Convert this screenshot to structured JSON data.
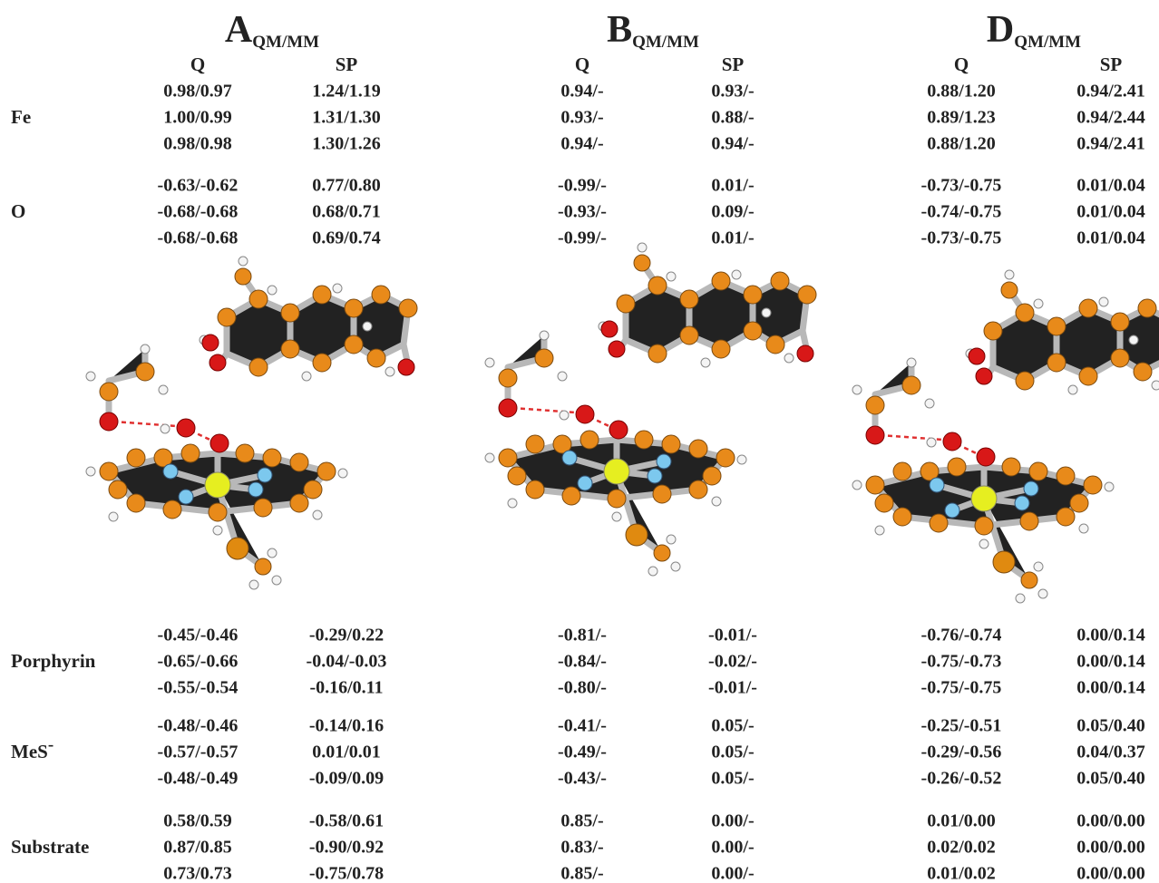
{
  "panels": [
    {
      "letter": "A",
      "subscript": "QM/MM",
      "columns": [
        "Q",
        "SP"
      ]
    },
    {
      "letter": "B",
      "subscript": "QM/MM",
      "columns": [
        "Q",
        "SP"
      ]
    },
    {
      "letter": "D",
      "subscript": "QM/MM",
      "columns": [
        "Q",
        "SP"
      ]
    }
  ],
  "groups": [
    {
      "label": "Fe",
      "rows": [
        [
          "0.98/0.97",
          "1.24/1.19",
          "0.94/-",
          "0.93/-",
          "0.88/1.20",
          "0.94/2.41"
        ],
        [
          "1.00/0.99",
          "1.31/1.30",
          "0.93/-",
          "0.88/-",
          "0.89/1.23",
          "0.94/2.44"
        ],
        [
          "0.98/0.98",
          "1.30/1.26",
          "0.94/-",
          "0.94/-",
          "0.88/1.20",
          "0.94/2.41"
        ]
      ]
    },
    {
      "label": "O",
      "rows": [
        [
          "-0.63/-0.62",
          "0.77/0.80",
          "-0.99/-",
          "0.01/-",
          "-0.73/-0.75",
          "0.01/0.04"
        ],
        [
          "-0.68/-0.68",
          "0.68/0.71",
          "-0.93/-",
          "0.09/-",
          "-0.74/-0.75",
          "0.01/0.04"
        ],
        [
          "-0.68/-0.68",
          "0.69/0.74",
          "-0.99/-",
          "0.01/-",
          "-0.73/-0.75",
          "0.01/0.04"
        ]
      ]
    },
    {
      "label": "Porphyrin",
      "rows": [
        [
          "-0.45/-0.46",
          "-0.29/0.22",
          "-0.81/-",
          "-0.01/-",
          "-0.76/-0.74",
          "0.00/0.14"
        ],
        [
          "-0.65/-0.66",
          "-0.04/-0.03",
          "-0.84/-",
          "-0.02/-",
          "-0.75/-0.73",
          "0.00/0.14"
        ],
        [
          "-0.55/-0.54",
          "-0.16/0.11",
          "-0.80/-",
          "-0.01/-",
          "-0.75/-0.75",
          "0.00/0.14"
        ]
      ]
    },
    {
      "label": "MeS",
      "superscript": "-",
      "rows": [
        [
          "-0.48/-0.46",
          "-0.14/0.16",
          "-0.41/-",
          "0.05/-",
          "-0.25/-0.51",
          "0.05/0.40"
        ],
        [
          "-0.57/-0.57",
          "0.01/0.01",
          "-0.49/-",
          "0.05/-",
          "-0.29/-0.56",
          "0.04/0.37"
        ],
        [
          "-0.48/-0.49",
          "-0.09/0.09",
          "-0.43/-",
          "0.05/-",
          "-0.26/-0.52",
          "0.05/0.40"
        ]
      ]
    },
    {
      "label": "Substrate",
      "rows": [
        [
          "0.58/0.59",
          "-0.58/0.61",
          "0.85/-",
          "0.00/-",
          "0.01/0.00",
          "0.00/0.00"
        ],
        [
          "0.87/0.85",
          "-0.90/0.92",
          "0.83/-",
          "0.00/-",
          "0.02/0.02",
          "0.00/0.00"
        ],
        [
          "0.73/0.73",
          "-0.75/0.78",
          "0.85/-",
          "0.00/-",
          "0.01/0.02",
          "0.00/0.00"
        ]
      ]
    }
  ]
}
